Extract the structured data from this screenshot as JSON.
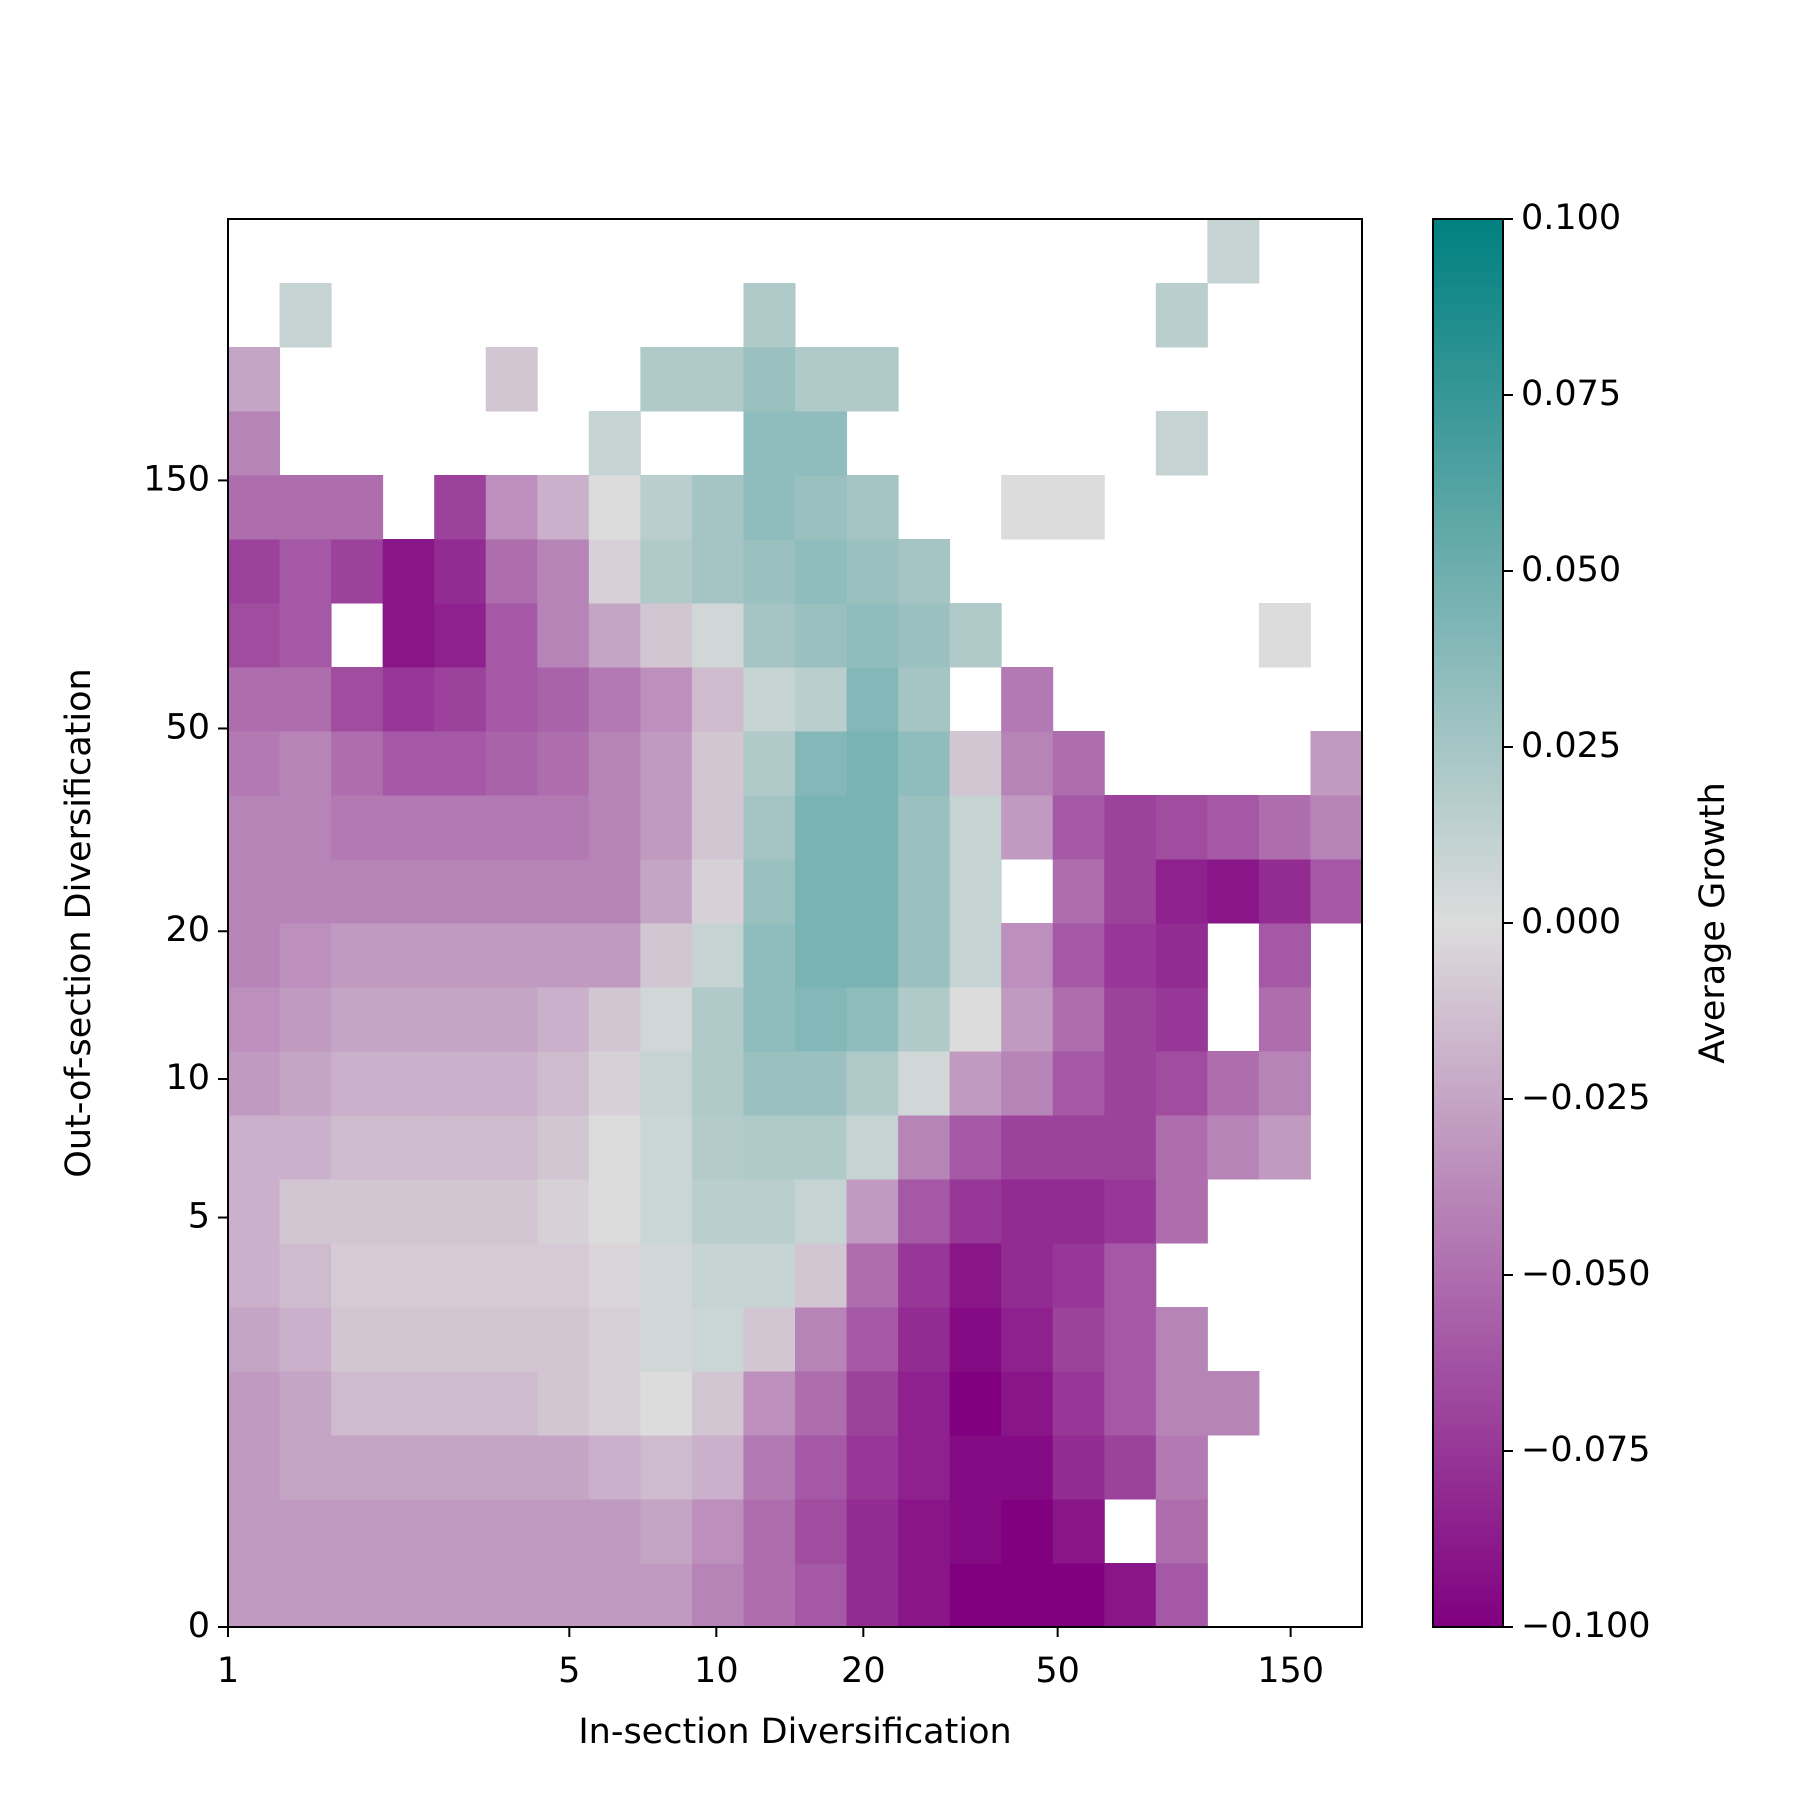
{
  "chart_data": {
    "type": "heatmap",
    "x_label": "In-section Diversification",
    "y_label": "Out-of-section Diversification",
    "colorbar_label": "Average Growth",
    "xscale": "log",
    "yscale": "log1p",
    "xlim": [
      1,
      210
    ],
    "ylim": [
      0,
      473
    ],
    "xticks": [
      1,
      5,
      10,
      20,
      50,
      150
    ],
    "yticks": [
      0,
      5,
      10,
      20,
      50,
      150
    ],
    "zlim": [
      -0.1,
      0.1
    ],
    "cmap_colors": [
      "#800080",
      "#dcdcdc",
      "#008080"
    ],
    "colorbar_ticks": [
      {
        "value": 0.1,
        "label": "0.100"
      },
      {
        "value": 0.075,
        "label": "0.075"
      },
      {
        "value": 0.05,
        "label": "0.050"
      },
      {
        "value": 0.025,
        "label": "0.025"
      },
      {
        "value": 0,
        "label": "0.000"
      },
      {
        "value": -0.025,
        "label": "−0.025"
      },
      {
        "value": -0.05,
        "label": "−0.050"
      },
      {
        "value": -0.075,
        "label": "−0.075"
      },
      {
        "value": -0.1,
        "label": "−0.100"
      }
    ],
    "z": [
      [
        -0.03,
        -0.03,
        -0.03,
        -0.03,
        -0.03,
        -0.03,
        -0.03,
        -0.03,
        -0.03,
        -0.04,
        -0.05,
        -0.06,
        -0.08,
        -0.09,
        -0.1,
        -0.1,
        -0.1,
        -0.09,
        -0.06,
        null,
        null,
        null
      ],
      [
        -0.03,
        -0.03,
        -0.03,
        -0.03,
        -0.03,
        -0.03,
        -0.03,
        -0.03,
        -0.025,
        -0.035,
        -0.05,
        -0.065,
        -0.08,
        -0.09,
        -0.095,
        -0.1,
        -0.09,
        null,
        -0.05,
        null,
        null,
        null
      ],
      [
        -0.03,
        -0.025,
        -0.025,
        -0.025,
        -0.025,
        -0.025,
        -0.025,
        -0.02,
        -0.015,
        -0.02,
        -0.045,
        -0.06,
        -0.075,
        -0.085,
        -0.095,
        -0.095,
        -0.08,
        -0.07,
        -0.045,
        null,
        null,
        null
      ],
      [
        -0.03,
        -0.025,
        -0.015,
        -0.015,
        -0.015,
        -0.015,
        -0.01,
        -0.005,
        0,
        -0.01,
        -0.035,
        -0.05,
        -0.07,
        -0.085,
        -0.1,
        -0.09,
        -0.075,
        -0.06,
        -0.04,
        -0.04,
        null,
        null
      ],
      [
        -0.025,
        -0.02,
        -0.01,
        -0.01,
        -0.01,
        -0.01,
        -0.01,
        -0.005,
        0.005,
        0.008,
        -0.01,
        -0.04,
        -0.06,
        -0.08,
        -0.095,
        -0.085,
        -0.07,
        -0.06,
        -0.04,
        null,
        null,
        null
      ],
      [
        -0.02,
        -0.015,
        -0.008,
        -0.008,
        -0.008,
        -0.008,
        -0.008,
        -0.003,
        0.005,
        0.01,
        0.01,
        -0.01,
        -0.05,
        -0.075,
        -0.09,
        -0.08,
        -0.075,
        -0.06,
        null,
        null,
        null,
        null
      ],
      [
        -0.02,
        -0.01,
        -0.01,
        -0.01,
        -0.01,
        -0.01,
        -0.005,
        0,
        0.008,
        0.015,
        0.015,
        0.01,
        -0.03,
        -0.06,
        -0.075,
        -0.08,
        -0.08,
        -0.075,
        -0.05,
        null,
        null,
        null
      ],
      [
        -0.02,
        -0.02,
        -0.015,
        -0.015,
        -0.015,
        -0.015,
        -0.01,
        0,
        0.008,
        0.018,
        0.02,
        0.02,
        0.01,
        -0.04,
        -0.06,
        -0.07,
        -0.07,
        -0.07,
        -0.05,
        -0.04,
        -0.03,
        null
      ],
      [
        -0.03,
        -0.025,
        -0.02,
        -0.02,
        -0.02,
        -0.02,
        -0.015,
        -0.005,
        0.01,
        0.02,
        0.03,
        0.03,
        0.02,
        0.005,
        -0.03,
        -0.04,
        -0.06,
        -0.07,
        -0.065,
        -0.05,
        -0.04,
        null
      ],
      [
        -0.035,
        -0.03,
        -0.025,
        -0.025,
        -0.025,
        -0.025,
        -0.02,
        -0.01,
        0.005,
        0.02,
        0.035,
        0.04,
        0.035,
        0.02,
        0,
        -0.03,
        -0.05,
        -0.07,
        -0.075,
        null,
        -0.05,
        null
      ],
      [
        -0.04,
        -0.035,
        -0.03,
        -0.03,
        -0.03,
        -0.03,
        -0.03,
        -0.03,
        -0.01,
        0.01,
        0.035,
        0.045,
        0.045,
        0.03,
        0.01,
        -0.035,
        -0.06,
        -0.075,
        -0.08,
        null,
        -0.06,
        null
      ],
      [
        -0.04,
        -0.04,
        -0.04,
        -0.04,
        -0.04,
        -0.04,
        -0.04,
        -0.04,
        -0.025,
        -0.005,
        0.03,
        0.045,
        0.045,
        0.03,
        0.01,
        null,
        -0.05,
        -0.07,
        -0.085,
        -0.09,
        -0.08,
        -0.06
      ],
      [
        -0.04,
        -0.04,
        -0.045,
        -0.045,
        -0.045,
        -0.045,
        -0.045,
        -0.04,
        -0.03,
        -0.01,
        0.025,
        0.045,
        0.045,
        0.03,
        0.01,
        -0.03,
        -0.06,
        -0.07,
        -0.065,
        -0.06,
        -0.05,
        -0.04
      ],
      [
        -0.045,
        -0.04,
        -0.05,
        -0.06,
        -0.06,
        -0.055,
        -0.05,
        -0.04,
        -0.03,
        -0.01,
        0.02,
        0.04,
        0.045,
        0.035,
        -0.01,
        -0.04,
        -0.05,
        null,
        null,
        null,
        null,
        -0.03
      ],
      [
        -0.05,
        -0.05,
        -0.065,
        -0.075,
        -0.07,
        -0.06,
        -0.055,
        -0.045,
        -0.035,
        -0.015,
        0.01,
        0.015,
        0.04,
        0.025,
        null,
        -0.045,
        null,
        null,
        null,
        null,
        null,
        null
      ],
      [
        -0.065,
        -0.06,
        null,
        -0.09,
        -0.085,
        -0.06,
        -0.04,
        -0.025,
        -0.01,
        0.005,
        0.025,
        0.03,
        0.035,
        0.03,
        0.02,
        null,
        null,
        null,
        null,
        null,
        0,
        null
      ],
      [
        -0.07,
        -0.06,
        -0.07,
        -0.09,
        -0.08,
        -0.05,
        -0.04,
        -0.005,
        0.02,
        0.025,
        0.03,
        0.035,
        0.03,
        0.025,
        null,
        null,
        null,
        null,
        null,
        null,
        null,
        null
      ],
      [
        -0.05,
        -0.05,
        -0.05,
        null,
        -0.07,
        -0.035,
        -0.02,
        0,
        0.015,
        0.025,
        0.035,
        0.03,
        0.025,
        null,
        null,
        0,
        0,
        null,
        null,
        null,
        null,
        null
      ],
      [
        -0.04,
        null,
        null,
        null,
        null,
        null,
        null,
        0.01,
        null,
        null,
        0.035,
        0.035,
        null,
        null,
        null,
        null,
        null,
        null,
        0.01,
        null,
        null,
        null
      ],
      [
        -0.025,
        null,
        null,
        null,
        null,
        -0.01,
        null,
        null,
        0.02,
        0.02,
        0.03,
        0.02,
        0.02,
        null,
        null,
        null,
        null,
        null,
        null,
        null,
        null,
        null
      ],
      [
        null,
        0.01,
        null,
        null,
        null,
        null,
        null,
        null,
        null,
        null,
        0.02,
        null,
        null,
        null,
        null,
        null,
        null,
        null,
        0.015,
        null,
        null,
        null
      ],
      [
        null,
        null,
        null,
        null,
        null,
        null,
        null,
        null,
        null,
        null,
        null,
        null,
        null,
        null,
        null,
        null,
        null,
        null,
        null,
        0.01,
        null,
        null
      ]
    ]
  }
}
